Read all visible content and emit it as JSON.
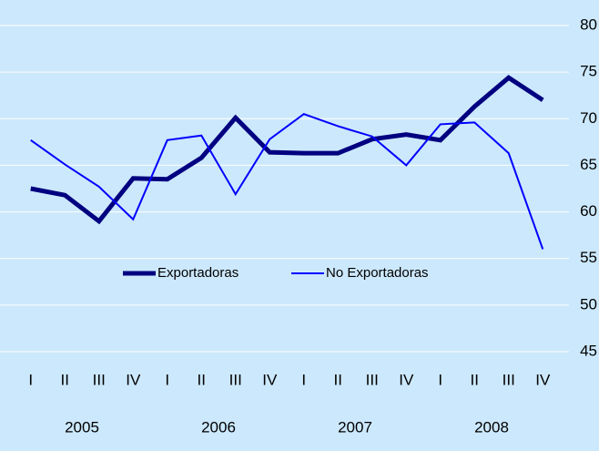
{
  "chart_data": {
    "type": "line",
    "categories": [
      "I",
      "II",
      "III",
      "IV",
      "I",
      "II",
      "III",
      "IV",
      "I",
      "II",
      "III",
      "IV",
      "I",
      "II",
      "III",
      "IV"
    ],
    "groups": [
      "2005",
      "2006",
      "2007",
      "2008"
    ],
    "series": [
      {
        "name": "Exportadoras",
        "color": "#000080",
        "width": 5,
        "values": [
          62.5,
          61.8,
          59.0,
          63.6,
          63.5,
          65.8,
          70.1,
          66.4,
          66.3,
          66.3,
          67.8,
          68.3,
          67.7,
          71.3,
          74.4,
          72.0
        ]
      },
      {
        "name": "No Exportadoras",
        "color": "#0000ff",
        "width": 2,
        "values": [
          67.7,
          65.1,
          62.7,
          59.2,
          67.7,
          68.2,
          61.9,
          67.8,
          70.5,
          69.2,
          68.1,
          65.0,
          69.4,
          69.6,
          66.3,
          56.0
        ]
      }
    ],
    "ylim": [
      45,
      80
    ],
    "yticks": [
      45,
      50,
      55,
      60,
      65,
      70,
      75,
      80
    ],
    "y_axis_side": "right",
    "grid": true,
    "legend": "center",
    "background": "#cce8fc"
  }
}
